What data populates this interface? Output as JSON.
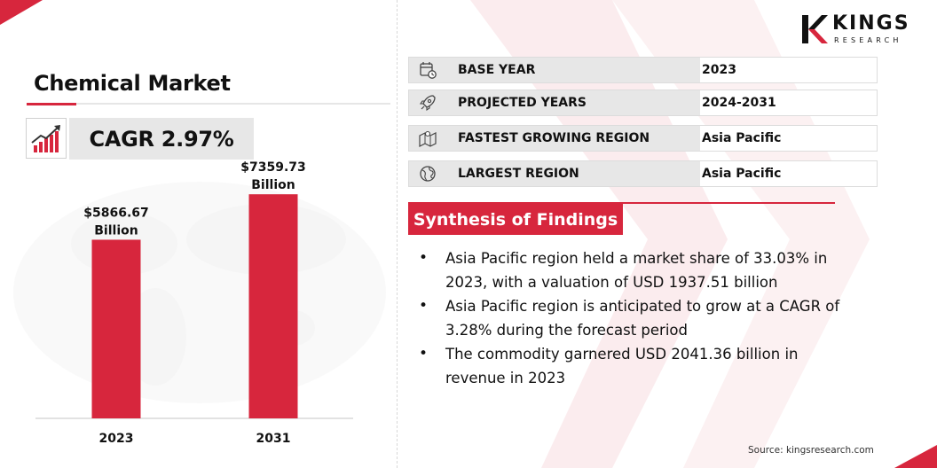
{
  "brand": {
    "logo_name": "KINGS",
    "logo_sub": "RESEARCH",
    "accent_color": "#d7263d",
    "gray_color": "#e7e7e7"
  },
  "left_panel": {
    "title": "Chemical Market",
    "cagr_label": "CAGR 2.97%",
    "cagr_icon": "trend-up-bar-icon"
  },
  "chart_data": {
    "type": "bar",
    "categories": [
      "2023",
      "2031"
    ],
    "values": [
      5866.67,
      7359.73
    ],
    "data_labels": [
      [
        "$5866.67",
        "Billion"
      ],
      [
        "$7359.73",
        "Billion"
      ]
    ],
    "title": "",
    "xlabel": "",
    "ylabel": "",
    "ylim": [
      0,
      8500
    ],
    "grid": false,
    "color": "#d7263d"
  },
  "info_rows": [
    {
      "icon": "calendar-clock-icon",
      "label": "BASE YEAR",
      "value": "2023"
    },
    {
      "icon": "rocket-icon",
      "label": "PROJECTED YEARS",
      "value": "2024-2031"
    },
    {
      "icon": "region-map-icon",
      "label": "FASTEST GROWING REGION",
      "value": "Asia Pacific"
    },
    {
      "icon": "globe-icon",
      "label": "LARGEST REGION",
      "value": "Asia Pacific"
    }
  ],
  "findings": {
    "heading": "Synthesis of Findings",
    "items": [
      [
        "Asia Pacific region held a market share of 33.03% in",
        "2023, with a valuation of USD 1937.51 billion"
      ],
      [
        "Asia Pacific region is anticipated to grow at a CAGR of",
        "3.28% during the forecast period"
      ],
      [
        "The commodity garnered USD 2041.36 billion in",
        "revenue in 2023"
      ]
    ]
  },
  "source": "Source: kingsresearch.com"
}
